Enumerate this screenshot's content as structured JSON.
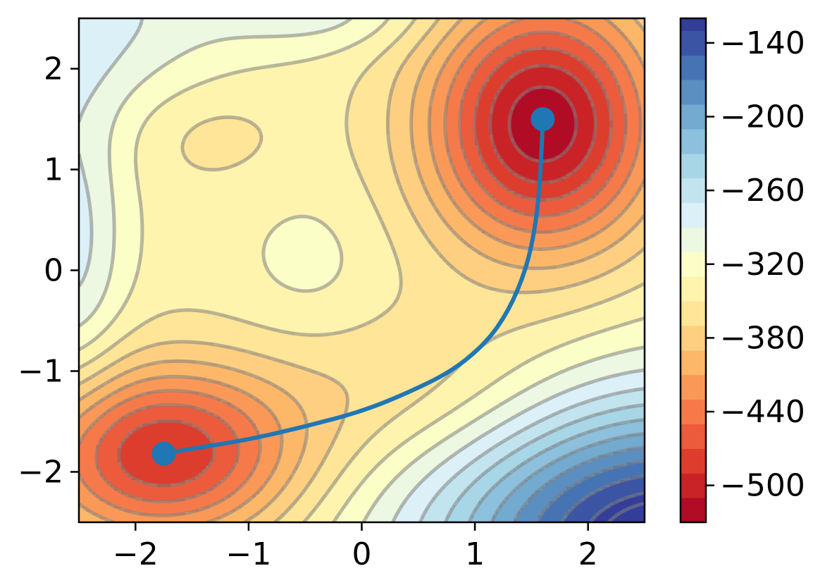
{
  "chart_data": {
    "type": "heatmap",
    "subtype": "filled-contour",
    "title": "",
    "xlabel": "",
    "ylabel": "",
    "xlim": [
      -2.5,
      2.5
    ],
    "ylim": [
      -2.5,
      2.5
    ],
    "x_ticks": [
      -2,
      -1,
      0,
      1,
      2
    ],
    "y_ticks": [
      -2,
      -1,
      0,
      1,
      2
    ],
    "x_tick_labels": [
      "−2",
      "−1",
      "0",
      "1",
      "2"
    ],
    "y_tick_labels": [
      "−2",
      "−1",
      "0",
      "1",
      "2"
    ],
    "colormap": "RdYlBu",
    "colorbar": {
      "range": [
        -530,
        -120
      ],
      "ticks": [
        -140,
        -200,
        -260,
        -320,
        -380,
        -440,
        -500
      ],
      "tick_labels": [
        "−140",
        "−200",
        "−260",
        "−320",
        "−380",
        "−440",
        "−500"
      ],
      "levels": [
        -530,
        -510,
        -490,
        -470,
        -450,
        -430,
        -410,
        -390,
        -370,
        -350,
        -330,
        -310,
        -290,
        -270,
        -250,
        -230,
        -210,
        -190,
        -170,
        -150,
        -130,
        -120
      ]
    },
    "minima": [
      {
        "x": 1.6,
        "y": 1.5,
        "value": -520
      },
      {
        "x": -1.75,
        "y": -1.82,
        "value": -480
      }
    ],
    "path": {
      "color": "#1f77b4",
      "points": [
        [
          -1.75,
          -1.82
        ],
        [
          -1.5,
          -1.77
        ],
        [
          -1.0,
          -1.68
        ],
        [
          -0.5,
          -1.55
        ],
        [
          0.0,
          -1.4
        ],
        [
          0.4,
          -1.22
        ],
        [
          0.8,
          -1.0
        ],
        [
          1.1,
          -0.72
        ],
        [
          1.3,
          -0.4
        ],
        [
          1.45,
          0.0
        ],
        [
          1.53,
          0.4
        ],
        [
          1.57,
          0.8
        ],
        [
          1.59,
          1.2
        ],
        [
          1.6,
          1.5
        ]
      ]
    },
    "contour_lines": {
      "style": "dashed",
      "color": "#7f7f7f"
    },
    "grid": false
  }
}
